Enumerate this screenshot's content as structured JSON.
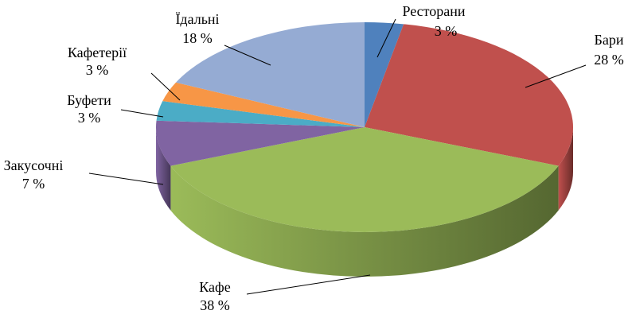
{
  "chart_data": {
    "type": "pie",
    "categories": [
      "Ресторани",
      "Бари",
      "Кафе",
      "Закусочні",
      "Буфети",
      "Кафетерії",
      "Їдальні"
    ],
    "values": [
      3,
      28,
      38,
      7,
      3,
      3,
      18
    ],
    "value_labels": [
      "3 %",
      "28 %",
      "38 %",
      "7 %",
      "3 %",
      "3 %",
      "18 %"
    ],
    "colors": [
      "#4f81bd",
      "#c0504d",
      "#9bbb59",
      "#8064a2",
      "#4bacc6",
      "#f79646",
      "#95abd3"
    ]
  }
}
